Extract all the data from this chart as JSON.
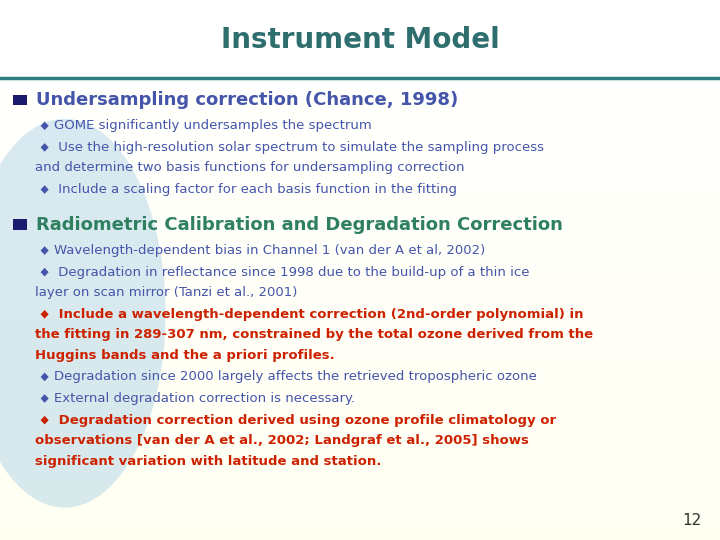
{
  "title": "Instrument Model",
  "title_color": "#2F6E6E",
  "title_fontsize": 20,
  "header_line_color": "#2F8080",
  "section1_heading": "Undersampling correction (Chance, 1998)",
  "section1_color": "#4455AA",
  "section2_heading": "Radiometric Calibration and Degradation Correction",
  "section2_color": "#2F8060",
  "square_bullet_color": "#1A1A6E",
  "page_number": "12",
  "items": [
    {
      "section": 1,
      "lines": [
        "GOME significantly undersamples the spectrum"
      ],
      "color": "#4455AA",
      "bold": false
    },
    {
      "section": 1,
      "lines": [
        " Use the high-resolution solar spectrum to simulate the sampling process",
        "and determine two basis functions for undersampling correction"
      ],
      "color": "#4455AA",
      "bold": false
    },
    {
      "section": 1,
      "lines": [
        " Include a scaling factor for each basis function in the fitting"
      ],
      "color": "#4455AA",
      "bold": false
    },
    {
      "section": 2,
      "lines": [
        "Wavelength-dependent bias in Channel 1 (van der A et al, 2002)"
      ],
      "color": "#4455AA",
      "bold": false
    },
    {
      "section": 2,
      "lines": [
        " Degradation in reflectance since 1998 due to the build-up of a thin ice",
        "layer on scan mirror (Tanzi et al., 2001)"
      ],
      "color": "#4455AA",
      "bold": false
    },
    {
      "section": 2,
      "lines": [
        " Include a wavelength-dependent correction (2nd-order polynomial) in",
        "the fitting in 289-307 nm, constrained by the total ozone derived from the",
        "Huggins bands and the a priori profiles."
      ],
      "color": "#CC2200",
      "bold": true
    },
    {
      "section": 2,
      "lines": [
        "Degradation since 2000 largely affects the retrieved tropospheric ozone"
      ],
      "color": "#4455AA",
      "bold": false
    },
    {
      "section": 2,
      "lines": [
        "External degradation correction is necessary."
      ],
      "color": "#4455AA",
      "bold": false
    },
    {
      "section": 2,
      "lines": [
        " Degradation correction derived using ozone profile climatology or",
        "observations [van der A et al., 2002; Landgraf et al., 2005] shows",
        "significant variation with latitude and station."
      ],
      "color": "#CC2200",
      "bold": true
    }
  ]
}
